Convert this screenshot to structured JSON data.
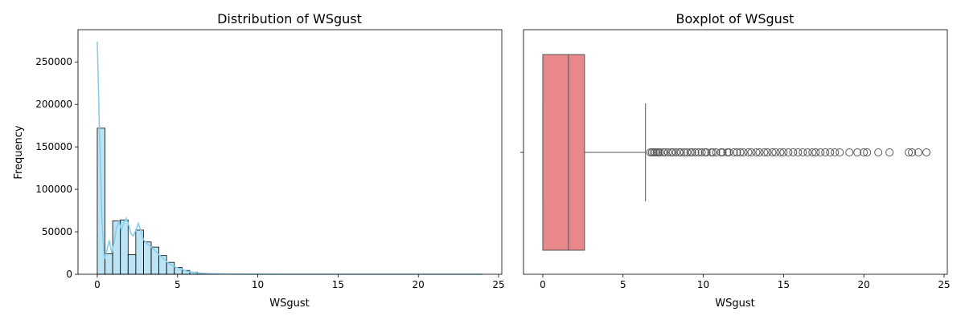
{
  "chart_data": [
    {
      "type": "histogram",
      "title": "Distribution of WSgust",
      "xlabel": "WSgust",
      "ylabel": "Frequency",
      "xlim": [
        -1.2,
        25.2
      ],
      "ylim": [
        0,
        288000
      ],
      "xticks": [
        0,
        5,
        10,
        15,
        20,
        25
      ],
      "yticks": [
        0,
        50000,
        100000,
        150000,
        200000,
        250000
      ],
      "bar_color": "#87ceeb",
      "kde_color": "#87ceeb",
      "bin_edges": [
        0,
        0.48,
        0.96,
        1.44,
        1.92,
        2.4,
        2.88,
        3.36,
        3.84,
        4.32,
        4.8,
        5.28,
        5.76,
        6.24,
        6.72,
        7.2,
        7.68,
        8.16,
        8.64
      ],
      "counts": [
        172000,
        24000,
        63000,
        64000,
        23000,
        52000,
        38000,
        32000,
        22000,
        14000,
        8000,
        4500,
        2500,
        1300,
        700,
        350,
        150,
        80
      ],
      "kde": {
        "x": [
          0,
          0.15,
          0.3,
          0.45,
          0.6,
          0.75,
          0.9,
          1.05,
          1.2,
          1.35,
          1.5,
          1.65,
          1.8,
          1.95,
          2.1,
          2.25,
          2.4,
          2.55,
          2.7,
          2.85,
          3.0,
          3.3,
          3.6,
          3.9,
          4.2,
          4.5,
          4.8,
          5.2,
          5.6,
          6.0,
          6.5,
          7.0,
          8.0,
          9.0,
          10.0,
          12.0,
          15.0,
          18.0,
          21.0,
          24.0
        ],
        "y": [
          274000,
          160000,
          60000,
          18000,
          28000,
          40000,
          25000,
          38000,
          55000,
          62000,
          52000,
          60000,
          66000,
          58000,
          48000,
          45000,
          52000,
          60000,
          52000,
          42000,
          38000,
          33000,
          28000,
          22000,
          17000,
          12000,
          9000,
          6000,
          3500,
          2200,
          1200,
          700,
          300,
          150,
          80,
          40,
          20,
          10,
          5,
          0
        ]
      }
    },
    {
      "type": "boxplot",
      "title": "Boxplot of WSgust",
      "xlabel": "WSgust",
      "xlim": [
        -1.2,
        25.2
      ],
      "xticks": [
        0,
        5,
        10,
        15,
        20,
        25
      ],
      "box_color": "#e8888a",
      "whisker_low": 0,
      "q1": 0,
      "median": 1.6,
      "q3": 2.6,
      "whisker_high": 6.4,
      "outliers": [
        6.7,
        6.8,
        6.9,
        7.0,
        7.1,
        7.2,
        7.3,
        7.5,
        7.6,
        7.8,
        8.0,
        8.1,
        8.3,
        8.5,
        8.6,
        8.8,
        9.0,
        9.2,
        9.3,
        9.5,
        9.7,
        9.9,
        10.1,
        10.2,
        10.5,
        10.6,
        10.8,
        11.1,
        11.2,
        11.5,
        11.6,
        11.9,
        12.1,
        12.3,
        12.5,
        12.8,
        13.0,
        13.3,
        13.5,
        13.8,
        14.0,
        14.3,
        14.5,
        14.8,
        15.0,
        15.3,
        15.6,
        15.9,
        16.2,
        16.5,
        16.8,
        17.0,
        17.3,
        17.6,
        17.9,
        18.2,
        18.5,
        19.1,
        19.6,
        20.0,
        20.2,
        20.9,
        21.6,
        22.8,
        23.0,
        23.4,
        23.9
      ]
    }
  ]
}
